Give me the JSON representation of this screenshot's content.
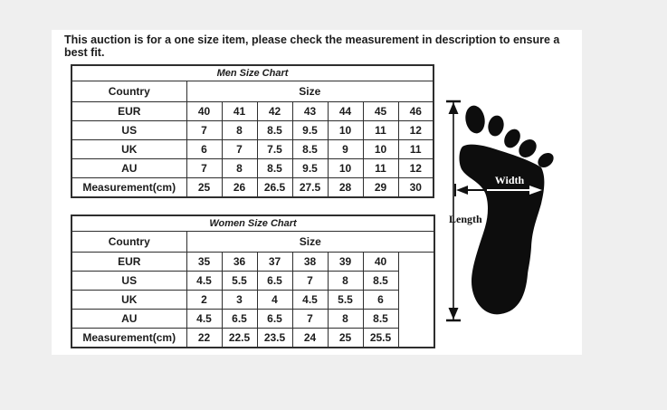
{
  "notice": "This auction is for a one size item, please check the measurement in description to ensure a best fit.",
  "colors": {
    "page_background": "#efefef",
    "panel_background": "#ffffff",
    "table_border": "#2e2e2e",
    "title_text": "#9a9a9a",
    "body_text": "#1c1c1c",
    "foot_fill": "#0d0d0d",
    "width_label_text": "#ffffff"
  },
  "men_table": {
    "title": "Men Size Chart",
    "country_header": "Country",
    "size_header": "Size",
    "rows": [
      {
        "label": "EUR",
        "values": [
          "40",
          "41",
          "42",
          "43",
          "44",
          "45",
          "46"
        ]
      },
      {
        "label": "US",
        "values": [
          "7",
          "8",
          "8.5",
          "9.5",
          "10",
          "11",
          "12"
        ]
      },
      {
        "label": "UK",
        "values": [
          "6",
          "7",
          "7.5",
          "8.5",
          "9",
          "10",
          "11"
        ]
      },
      {
        "label": "AU",
        "values": [
          "7",
          "8",
          "8.5",
          "9.5",
          "10",
          "11",
          "12"
        ]
      },
      {
        "label": "Measurement(cm)",
        "values": [
          "25",
          "26",
          "26.5",
          "27.5",
          "28",
          "29",
          "30"
        ]
      }
    ],
    "trailing_empty_column": false
  },
  "women_table": {
    "title": "Women Size Chart",
    "country_header": "Country",
    "size_header": "Size",
    "rows": [
      {
        "label": "EUR",
        "values": [
          "35",
          "36",
          "37",
          "38",
          "39",
          "40"
        ]
      },
      {
        "label": "US",
        "values": [
          "4.5",
          "5.5",
          "6.5",
          "7",
          "8",
          "8.5"
        ]
      },
      {
        "label": "UK",
        "values": [
          "2",
          "3",
          "4",
          "4.5",
          "5.5",
          "6"
        ]
      },
      {
        "label": "AU",
        "values": [
          "4.5",
          "6.5",
          "6.5",
          "7",
          "8",
          "8.5"
        ]
      },
      {
        "label": "Measurement(cm)",
        "values": [
          "22",
          "22.5",
          "23.5",
          "24",
          "25",
          "25.5"
        ]
      }
    ],
    "trailing_empty_column": true
  },
  "diagram": {
    "width_label": "Width",
    "length_label": "Length"
  }
}
